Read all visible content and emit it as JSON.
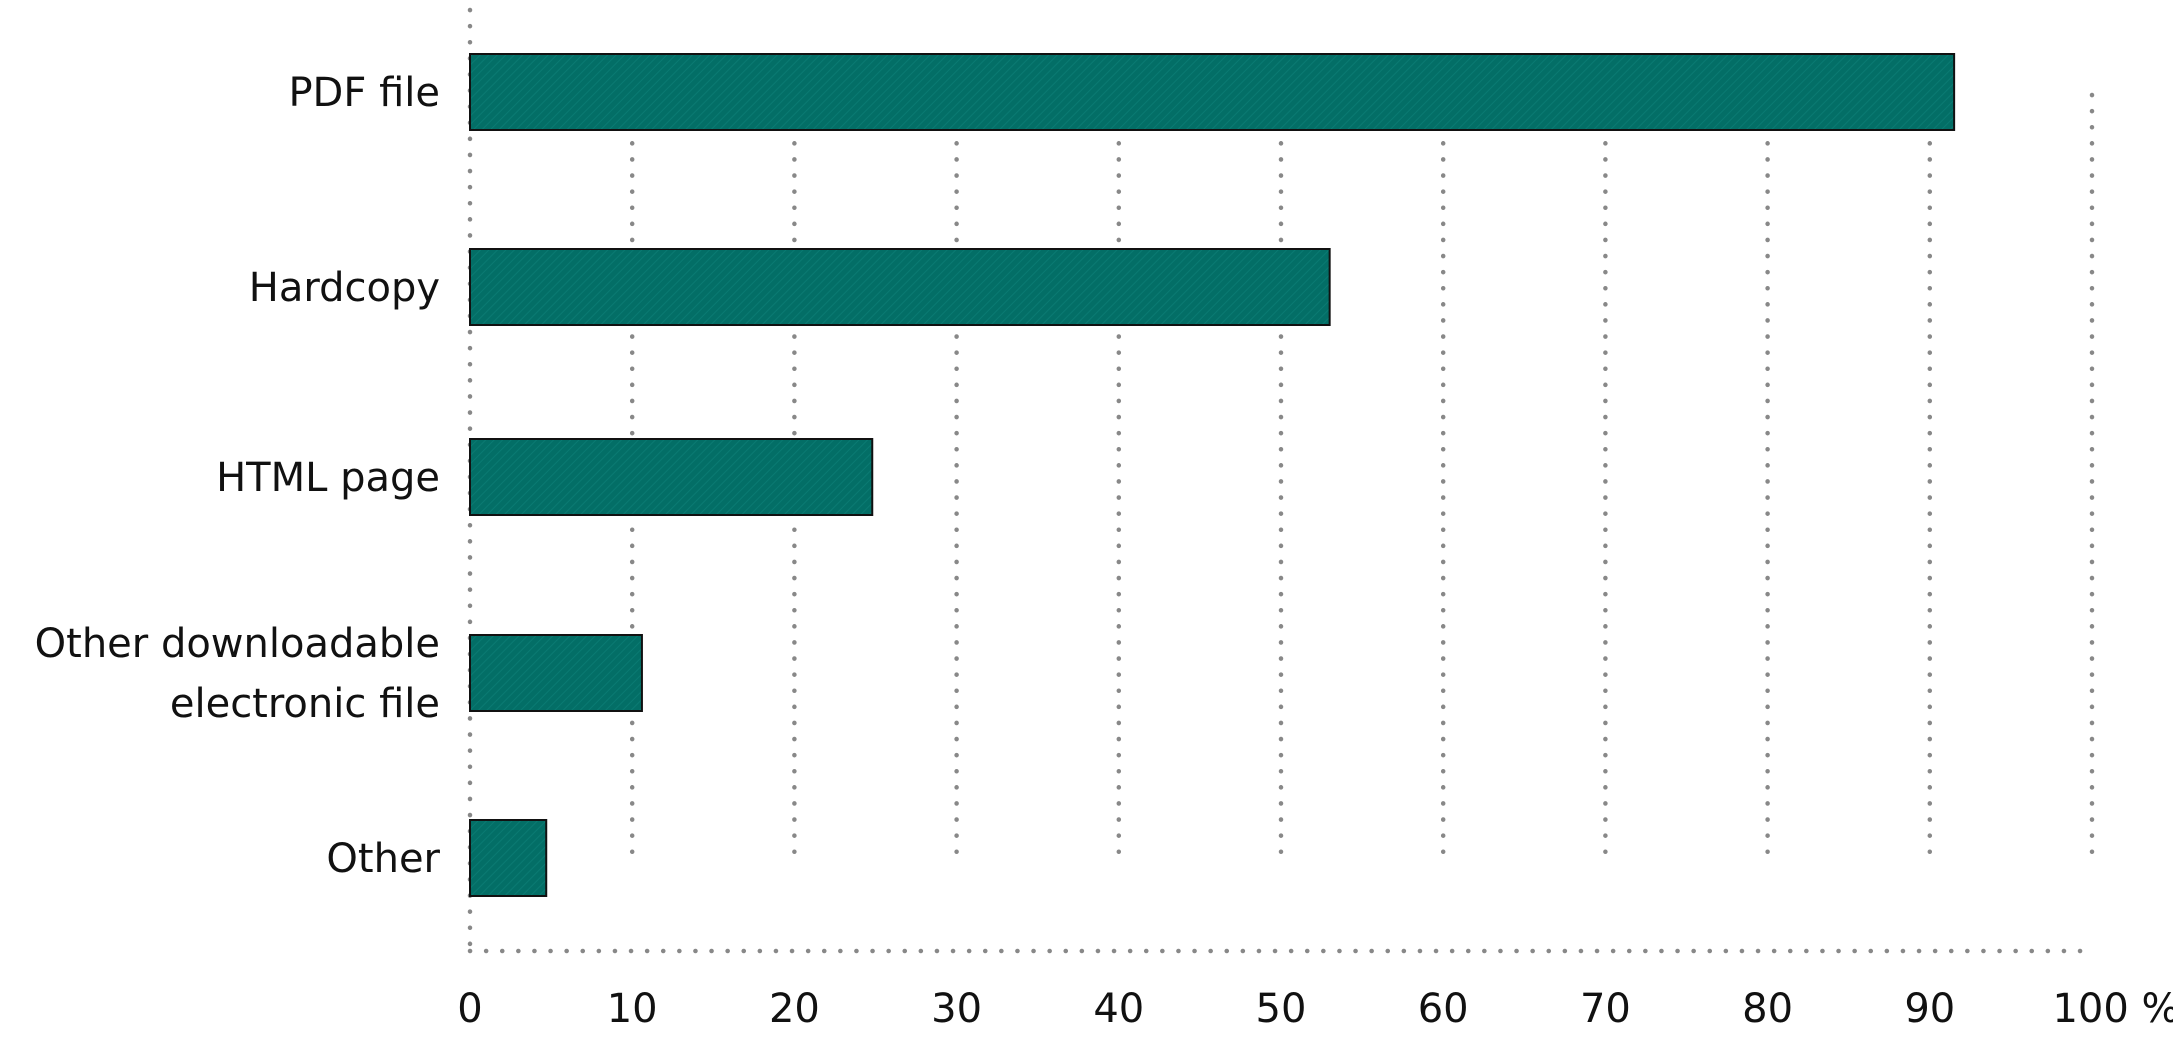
{
  "chart_data": {
    "type": "bar",
    "orientation": "horizontal",
    "title": "",
    "xlabel": "",
    "ylabel": "",
    "xlim": [
      0,
      100
    ],
    "tick_values": [
      0,
      10,
      20,
      30,
      40,
      50,
      60,
      70,
      80,
      90,
      100
    ],
    "tick_labels": [
      "0",
      "10",
      "20",
      "30",
      "40",
      "50",
      "60",
      "70",
      "80",
      "90",
      "100 %"
    ],
    "grid": "vertical dotted",
    "legend": "none",
    "bar_color": "#036e66",
    "categories": [
      {
        "label_lines": [
          "PDF file"
        ],
        "value": 91.5
      },
      {
        "label_lines": [
          "Hardcopy"
        ],
        "value": 53
      },
      {
        "label_lines": [
          "HTML page"
        ],
        "value": 24.8
      },
      {
        "label_lines": [
          "Other downloadable",
          "electronic file"
        ],
        "value": 10.6
      },
      {
        "label_lines": [
          "Other"
        ],
        "value": 4.7
      }
    ]
  }
}
